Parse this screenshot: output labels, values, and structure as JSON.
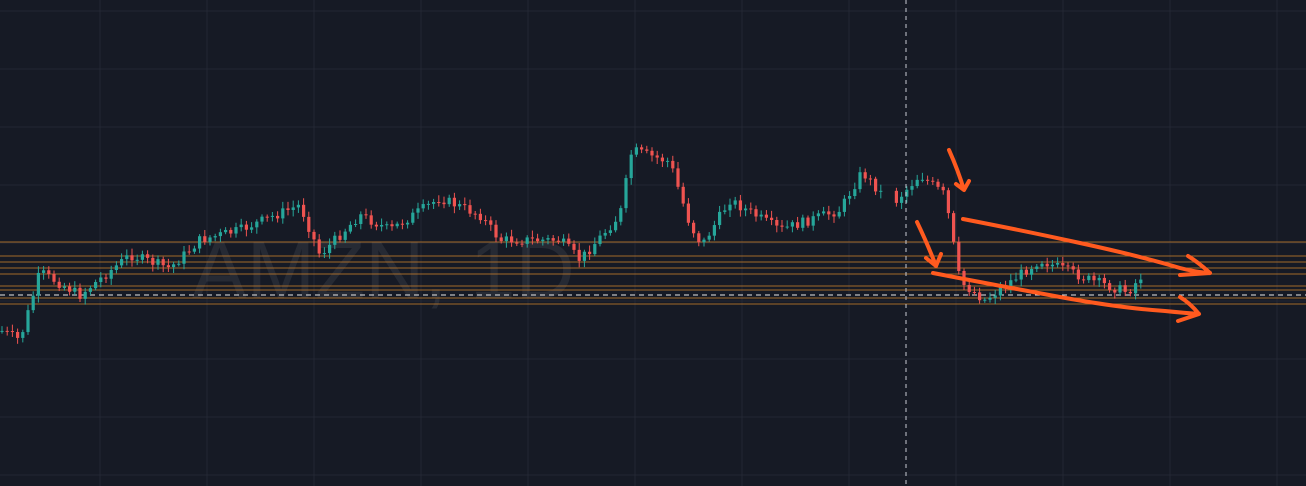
{
  "watermark": "AMZN, 1D"
}
